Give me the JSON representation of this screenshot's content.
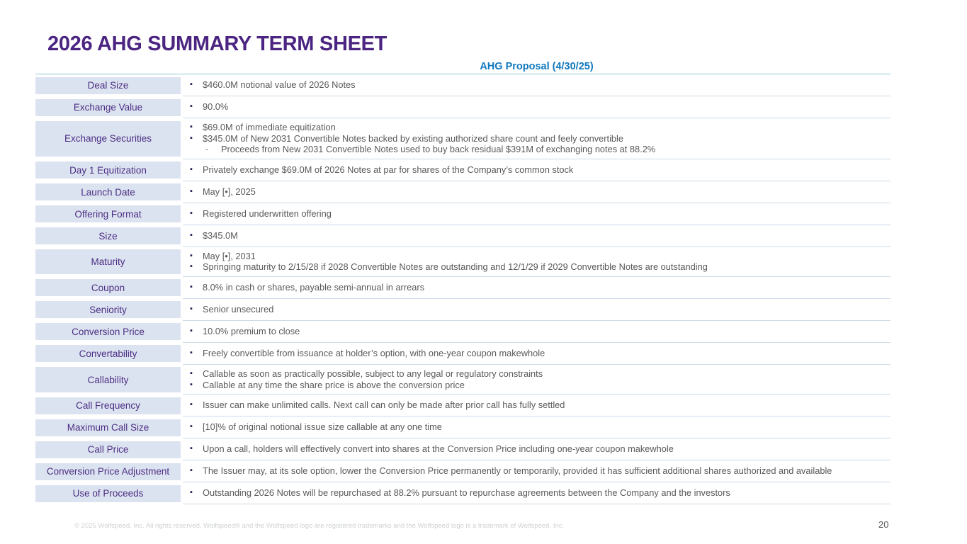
{
  "page": {
    "title": "2026 AHG SUMMARY TERM SHEET",
    "column_header": "AHG Proposal (4/30/25)",
    "footer": "© 2025 Wolfspeed, Inc. All rights reserved. Wolfspeed® and the Wolfspeed logo are registered trademarks and the Wolfspeed logo is a trademark of Wolfspeed, Inc.",
    "page_number": "20"
  },
  "colors": {
    "title_purple": "#4b2581",
    "label_background": "#dce3f0",
    "label_text": "#4b2e83",
    "body_text": "#595959",
    "accent_blue": "#1178be",
    "header_underline": "#8fc3e0",
    "row_separator": "#ccdbe9"
  },
  "markers": {
    "level1_bullet_icon": "▪",
    "level2_dash_icon": "-"
  },
  "rows": [
    {
      "label": "Deal Size",
      "bullets": [
        {
          "level": 1,
          "text": "$460.0M notional value of 2026 Notes"
        }
      ]
    },
    {
      "label": "Exchange Value",
      "bullets": [
        {
          "level": 1,
          "text": "90.0%"
        }
      ]
    },
    {
      "label": "Exchange Securities",
      "bullets": [
        {
          "level": 1,
          "text": "$69.0M of immediate equitization"
        },
        {
          "level": 1,
          "text": "$345.0M of New 2031 Convertible Notes backed by existing authorized share count and feely convertible"
        },
        {
          "level": 2,
          "text": "Proceeds from New 2031 Convertible Notes used to buy back residual $391M of exchanging notes at 88.2%"
        }
      ]
    },
    {
      "label": "Day 1 Equitization",
      "bullets": [
        {
          "level": 1,
          "text": "Privately exchange $69.0M of 2026 Notes at par for shares of the Company’s common stock"
        }
      ]
    },
    {
      "label": "Launch Date",
      "bullets": [
        {
          "level": 1,
          "text": "May [•], 2025"
        }
      ]
    },
    {
      "label": "Offering Format",
      "bullets": [
        {
          "level": 1,
          "text": "Registered underwritten offering"
        }
      ]
    },
    {
      "label": "Size",
      "bullets": [
        {
          "level": 1,
          "text": "$345.0M"
        }
      ]
    },
    {
      "label": "Maturity",
      "bullets": [
        {
          "level": 1,
          "text": "May [•], 2031"
        },
        {
          "level": 1,
          "text": "Springing maturity to 2/15/28 if 2028 Convertible Notes are outstanding and 12/1/29 if 2029 Convertible Notes are outstanding"
        }
      ]
    },
    {
      "label": "Coupon",
      "bullets": [
        {
          "level": 1,
          "text": "8.0% in cash or shares, payable semi-annual in arrears"
        }
      ]
    },
    {
      "label": "Seniority",
      "bullets": [
        {
          "level": 1,
          "text": "Senior unsecured"
        }
      ]
    },
    {
      "label": "Conversion Price",
      "bullets": [
        {
          "level": 1,
          "text": "10.0% premium to close"
        }
      ]
    },
    {
      "label": "Convertability",
      "bullets": [
        {
          "level": 1,
          "text": "Freely convertible from issuance at holder’s option, with one-year coupon makewhole"
        }
      ]
    },
    {
      "label": "Callability",
      "bullets": [
        {
          "level": 1,
          "text": "Callable as soon as practically possible, subject to any legal or regulatory constraints"
        },
        {
          "level": 1,
          "text": "Callable at any time the share price is above the conversion price"
        }
      ]
    },
    {
      "label": "Call Frequency",
      "bullets": [
        {
          "level": 1,
          "text": "Issuer can make unlimited calls. Next call can only be made after prior call has fully settled"
        }
      ]
    },
    {
      "label": "Maximum Call Size",
      "bullets": [
        {
          "level": 1,
          "text": "[10]% of original notional issue size callable at any one time"
        }
      ]
    },
    {
      "label": "Call Price",
      "bullets": [
        {
          "level": 1,
          "text": "Upon a call, holders will effectively convert into shares at the Conversion Price including one-year coupon makewhole"
        }
      ]
    },
    {
      "label": "Conversion Price Adjustment",
      "bullets": [
        {
          "level": 1,
          "text": "The Issuer may, at its sole option, lower the Conversion Price permanently or temporarily, provided it has sufficient additional shares authorized and available"
        }
      ]
    },
    {
      "label": "Use of Proceeds",
      "bullets": [
        {
          "level": 1,
          "text": "Outstanding 2026 Notes will be repurchased at 88.2% pursuant to repurchase agreements between the Company and the investors"
        }
      ]
    }
  ]
}
